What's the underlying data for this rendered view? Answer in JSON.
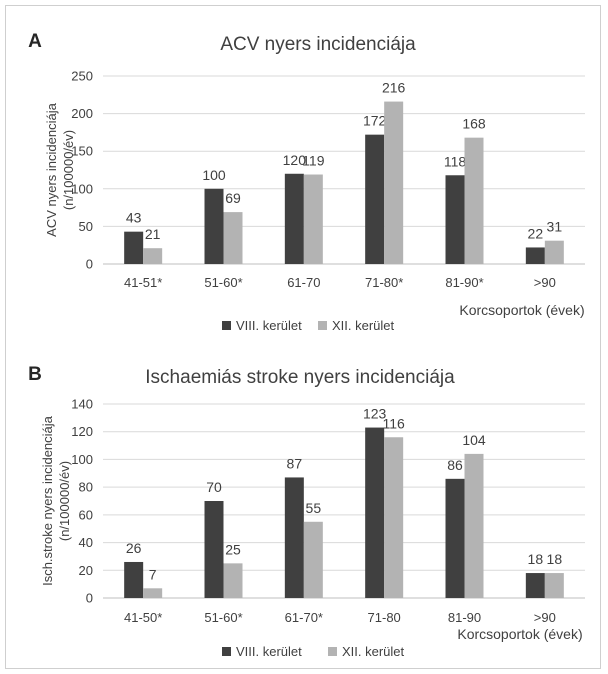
{
  "colors": {
    "series1": "#404040",
    "series2": "#b3b3b3",
    "grid": "#d9d9d9",
    "axis": "#bfbfbf",
    "text": "#404040"
  },
  "chart_data": [
    {
      "panel": "A",
      "type": "bar",
      "title": "ACV nyers incidenciája",
      "ylabel_lines": [
        "ACV nyers incidenciája",
        "(n/100000/év)"
      ],
      "xlabel": "Korcsoportok (évek)",
      "categories": [
        "41-51*",
        "51-60*",
        "61-70",
        "71-80*",
        "81-90*",
        ">90"
      ],
      "series": [
        {
          "name": "VIII. kerület",
          "values": [
            43,
            100,
            120,
            172,
            118,
            22
          ]
        },
        {
          "name": "XII. kerület",
          "values": [
            21,
            69,
            119,
            216,
            168,
            31
          ]
        }
      ],
      "ylim": [
        0,
        250
      ],
      "yticks": [
        0,
        50,
        100,
        150,
        200,
        250
      ],
      "grid": true,
      "legend": "bottom"
    },
    {
      "panel": "B",
      "type": "bar",
      "title": "Ischaemiás stroke nyers incidenciája",
      "ylabel_lines": [
        "Isch.stroke nyers incidenciája",
        "(n/100000/év)"
      ],
      "xlabel": "Korcsoportok (évek)",
      "categories": [
        "41-50*",
        "51-60*",
        "61-70*",
        "71-80",
        "81-90",
        ">90"
      ],
      "series": [
        {
          "name": "VIII. kerület",
          "values": [
            26,
            70,
            87,
            123,
            86,
            18
          ]
        },
        {
          "name": "XII. kerület",
          "values": [
            7,
            25,
            55,
            116,
            104,
            18
          ]
        }
      ],
      "ylim": [
        0,
        140
      ],
      "yticks": [
        0,
        20,
        40,
        60,
        80,
        100,
        120,
        140
      ],
      "grid": true,
      "legend": "bottom"
    }
  ]
}
